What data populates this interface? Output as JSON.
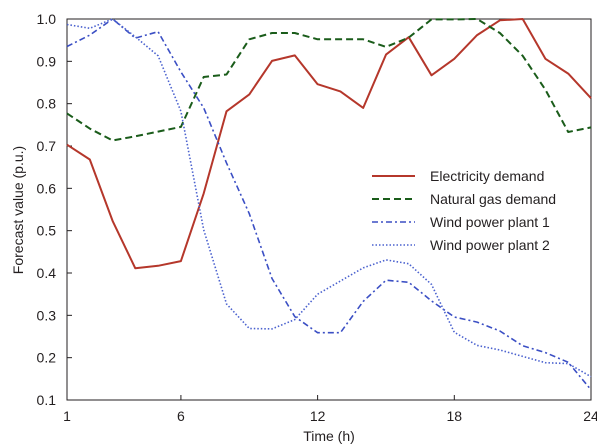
{
  "chart_data": {
    "type": "line",
    "xlabel": "Time (h)",
    "ylabel": "Forecast value (p.u.)",
    "xlim": [
      1,
      24
    ],
    "ylim": [
      0.1,
      1.0
    ],
    "xticks": [
      1,
      6,
      12,
      18,
      24
    ],
    "xtick_labels": [
      "1",
      "6",
      "12",
      "18",
      "24"
    ],
    "yticks": [
      0.1,
      0.2,
      0.3,
      0.4,
      0.5,
      0.6,
      0.7,
      0.8,
      0.9,
      1.0
    ],
    "ytick_labels": [
      "0.1",
      "0.2",
      "0.3",
      "0.4",
      "0.5",
      "0.6",
      "0.7",
      "0.8",
      "0.9",
      "1.0"
    ],
    "grid": false,
    "legend_position": "center-right",
    "x": [
      1,
      2,
      3,
      4,
      5,
      6,
      7,
      8,
      9,
      10,
      11,
      12,
      13,
      14,
      15,
      16,
      17,
      18,
      19,
      20,
      21,
      22,
      23,
      24
    ],
    "series": [
      {
        "name": "Electricity demand",
        "color": "#b5372b",
        "style": "solid",
        "values": [
          0.703,
          0.668,
          0.523,
          0.411,
          0.417,
          0.428,
          0.588,
          0.782,
          0.822,
          0.901,
          0.914,
          0.846,
          0.829,
          0.79,
          0.916,
          0.957,
          0.867,
          0.906,
          0.962,
          0.997,
          1.0,
          0.906,
          0.871,
          0.813
        ]
      },
      {
        "name": "Natural gas demand",
        "color": "#1a5c1a",
        "style": "dashed",
        "values": [
          0.777,
          0.741,
          0.713,
          0.723,
          0.734,
          0.745,
          0.863,
          0.869,
          0.952,
          0.967,
          0.967,
          0.952,
          0.952,
          0.952,
          0.934,
          0.956,
          0.999,
          0.999,
          1.0,
          0.967,
          0.913,
          0.833,
          0.733,
          0.744
        ]
      },
      {
        "name": "Wind power plant 1",
        "color": "#3b4fc4",
        "style": "dash-dot",
        "values": [
          0.935,
          0.962,
          1.0,
          0.955,
          0.97,
          0.875,
          0.79,
          0.66,
          0.54,
          0.387,
          0.297,
          0.259,
          0.259,
          0.333,
          0.383,
          0.378,
          0.334,
          0.296,
          0.284,
          0.263,
          0.228,
          0.212,
          0.189,
          0.124
        ]
      },
      {
        "name": "Wind power plant 2",
        "color": "#4b62cf",
        "style": "dotted",
        "values": [
          0.987,
          0.978,
          1.0,
          0.958,
          0.913,
          0.782,
          0.502,
          0.327,
          0.269,
          0.268,
          0.29,
          0.35,
          0.381,
          0.412,
          0.431,
          0.422,
          0.373,
          0.26,
          0.229,
          0.218,
          0.203,
          0.188,
          0.186,
          0.155
        ]
      }
    ]
  }
}
